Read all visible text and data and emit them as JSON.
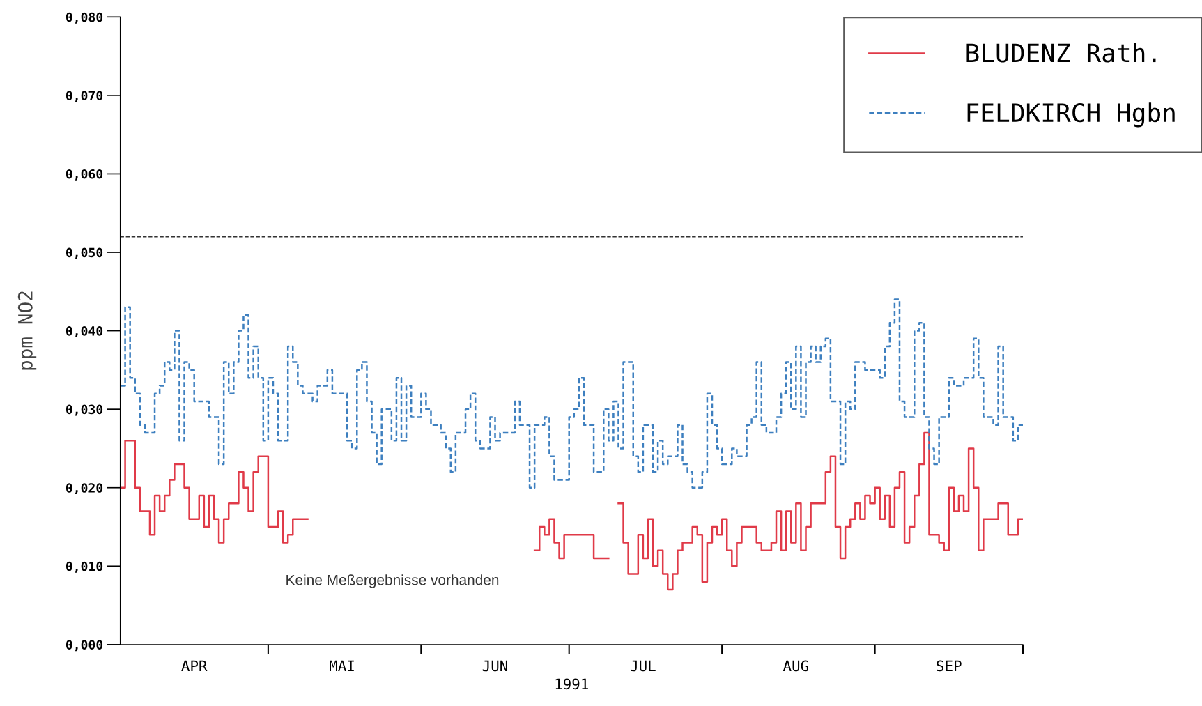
{
  "chart_data": {
    "type": "step",
    "xlabel": "1991",
    "ylabel": "ppm NO2",
    "xlim": [
      "1991-04-01",
      "1991-10-01"
    ],
    "ylim": [
      0,
      0.08
    ],
    "yticks": [
      {
        "value": 0,
        "label": "0,000"
      },
      {
        "value": 0.01,
        "label": "0,010"
      },
      {
        "value": 0.02,
        "label": "0,020"
      },
      {
        "value": 0.03,
        "label": "0,030"
      },
      {
        "value": 0.04,
        "label": "0,040"
      },
      {
        "value": 0.05,
        "label": "0,050"
      },
      {
        "value": 0.06,
        "label": "0,060"
      },
      {
        "value": 0.07,
        "label": "0,070"
      },
      {
        "value": 0.08,
        "label": "0,080"
      }
    ],
    "xticks": [
      {
        "value": "1991-04-16",
        "label": "APR"
      },
      {
        "value": "1991-05-01",
        "label": null
      },
      {
        "value": "1991-05-16",
        "label": "MAI"
      },
      {
        "value": "1991-06-01",
        "label": null
      },
      {
        "value": "1991-06-16",
        "label": "JUN"
      },
      {
        "value": "1991-07-01",
        "label": null
      },
      {
        "value": "1991-07-16",
        "label": "JUL"
      },
      {
        "value": "1991-08-01",
        "label": null
      },
      {
        "value": "1991-08-16",
        "label": "AUG"
      },
      {
        "value": "1991-09-01",
        "label": null
      },
      {
        "value": "1991-09-16",
        "label": "SEP"
      },
      {
        "value": "1991-10-01",
        "label": null
      }
    ],
    "grid": false,
    "legend": "top right",
    "ref_lines": [
      {
        "axis": "y",
        "value": 0.052,
        "color": "#333333",
        "line_style": "dashed"
      }
    ],
    "annotations": [
      "Keine Meßergebnisse vorhanden"
    ],
    "series": [
      {
        "name": "BLUDENZ Rath.",
        "color": "#e03a48",
        "line_style": "solid",
        "x": [
          "1991-04-01",
          "1991-04-02",
          "1991-04-04",
          "1991-04-05",
          "1991-04-07",
          "1991-04-08",
          "1991-04-09",
          "1991-04-10",
          "1991-04-11",
          "1991-04-12",
          "1991-04-14",
          "1991-04-15",
          "1991-04-17",
          "1991-04-18",
          "1991-04-19",
          "1991-04-20",
          "1991-04-21",
          "1991-04-22",
          "1991-04-23",
          "1991-04-25",
          "1991-04-26",
          "1991-04-27",
          "1991-04-28",
          "1991-04-29",
          "1991-05-01",
          "1991-05-03",
          "1991-05-04",
          "1991-05-05",
          "1991-05-06",
          "1991-05-08",
          "1991-05-09",
          "1991-06-24",
          "1991-06-25",
          "1991-06-26",
          "1991-06-27",
          "1991-06-28",
          "1991-06-29",
          "1991-06-30",
          "1991-07-06",
          "1991-07-08",
          "1991-07-09",
          "1991-07-11",
          "1991-07-12",
          "1991-07-13",
          "1991-07-15",
          "1991-07-16",
          "1991-07-17",
          "1991-07-18",
          "1991-07-19",
          "1991-07-20",
          "1991-07-21",
          "1991-07-22",
          "1991-07-23",
          "1991-07-24",
          "1991-07-26",
          "1991-07-27",
          "1991-07-28",
          "1991-07-29",
          "1991-07-30",
          "1991-07-31",
          "1991-08-01",
          "1991-08-02",
          "1991-08-03",
          "1991-08-04",
          "1991-08-05",
          "1991-08-08",
          "1991-08-09",
          "1991-08-11",
          "1991-08-12",
          "1991-08-13",
          "1991-08-14",
          "1991-08-15",
          "1991-08-16",
          "1991-08-17",
          "1991-08-18",
          "1991-08-19",
          "1991-08-22",
          "1991-08-23",
          "1991-08-24",
          "1991-08-25",
          "1991-08-26",
          "1991-08-27",
          "1991-08-28",
          "1991-08-29",
          "1991-08-30",
          "1991-08-31",
          "1991-09-01",
          "1991-09-02",
          "1991-09-03",
          "1991-09-04",
          "1991-09-05",
          "1991-09-06",
          "1991-09-07",
          "1991-09-08",
          "1991-09-09",
          "1991-09-10",
          "1991-09-11",
          "1991-09-12",
          "1991-09-14",
          "1991-09-15",
          "1991-09-16",
          "1991-09-17",
          "1991-09-18",
          "1991-09-19",
          "1991-09-20",
          "1991-09-21",
          "1991-09-22",
          "1991-09-23",
          "1991-09-24",
          "1991-09-26",
          "1991-09-28",
          "1991-09-30",
          "1991-10-01"
        ],
        "values": [
          0.02,
          0.026,
          0.02,
          0.017,
          0.014,
          0.019,
          0.017,
          0.019,
          0.021,
          0.023,
          0.02,
          0.016,
          0.019,
          0.015,
          0.019,
          0.016,
          0.013,
          0.016,
          0.018,
          0.022,
          0.02,
          0.017,
          0.022,
          0.024,
          0.015,
          0.017,
          0.013,
          0.014,
          0.016,
          0.016,
          null,
          0.012,
          0.015,
          0.014,
          0.016,
          0.013,
          0.011,
          0.014,
          0.011,
          0.011,
          null,
          0.018,
          0.013,
          0.009,
          0.014,
          0.011,
          0.016,
          0.01,
          0.012,
          0.009,
          0.007,
          0.009,
          0.012,
          0.013,
          0.015,
          0.014,
          0.008,
          0.013,
          0.015,
          0.014,
          0.016,
          0.012,
          0.01,
          0.013,
          0.015,
          0.013,
          0.012,
          0.013,
          0.017,
          0.012,
          0.017,
          0.013,
          0.018,
          0.012,
          0.015,
          0.018,
          0.022,
          0.024,
          0.015,
          0.011,
          0.015,
          0.016,
          0.018,
          0.016,
          0.019,
          0.018,
          0.02,
          0.016,
          0.019,
          0.015,
          0.02,
          0.022,
          0.013,
          0.015,
          0.019,
          0.023,
          0.027,
          0.014,
          0.013,
          0.012,
          0.02,
          0.017,
          0.019,
          0.017,
          0.025,
          0.02,
          0.012,
          0.016,
          0.016,
          0.018,
          0.014,
          0.016,
          0.016
        ]
      },
      {
        "name": "FELDKIRCH Hgbn",
        "color": "#3d7fbf",
        "line_style": "dashed",
        "x": [
          "1991-04-01",
          "1991-04-02",
          "1991-04-03",
          "1991-04-04",
          "1991-04-05",
          "1991-04-06",
          "1991-04-08",
          "1991-04-09",
          "1991-04-10",
          "1991-04-11",
          "1991-04-12",
          "1991-04-13",
          "1991-04-14",
          "1991-04-15",
          "1991-04-16",
          "1991-04-17",
          "1991-04-19",
          "1991-04-21",
          "1991-04-22",
          "1991-04-23",
          "1991-04-24",
          "1991-04-25",
          "1991-04-26",
          "1991-04-27",
          "1991-04-28",
          "1991-04-29",
          "1991-04-30",
          "1991-05-01",
          "1991-05-02",
          "1991-05-03",
          "1991-05-05",
          "1991-05-06",
          "1991-05-07",
          "1991-05-08",
          "1991-05-10",
          "1991-05-11",
          "1991-05-13",
          "1991-05-14",
          "1991-05-16",
          "1991-05-17",
          "1991-05-18",
          "1991-05-19",
          "1991-05-20",
          "1991-05-21",
          "1991-05-22",
          "1991-05-23",
          "1991-05-24",
          "1991-05-26",
          "1991-05-27",
          "1991-05-28",
          "1991-05-29",
          "1991-05-30",
          "1991-06-01",
          "1991-06-02",
          "1991-06-03",
          "1991-06-05",
          "1991-06-06",
          "1991-06-07",
          "1991-06-08",
          "1991-06-10",
          "1991-06-11",
          "1991-06-12",
          "1991-06-13",
          "1991-06-15",
          "1991-06-16",
          "1991-06-17",
          "1991-06-20",
          "1991-06-21",
          "1991-06-23",
          "1991-06-24",
          "1991-06-26",
          "1991-06-27",
          "1991-06-28",
          "1991-06-30",
          "1991-07-01",
          "1991-07-02",
          "1991-07-03",
          "1991-07-04",
          "1991-07-05",
          "1991-07-06",
          "1991-07-08",
          "1991-07-09",
          "1991-07-10",
          "1991-07-11",
          "1991-07-12",
          "1991-07-14",
          "1991-07-15",
          "1991-07-16",
          "1991-07-18",
          "1991-07-19",
          "1991-07-20",
          "1991-07-21",
          "1991-07-23",
          "1991-07-24",
          "1991-07-25",
          "1991-07-26",
          "1991-07-28",
          "1991-07-29",
          "1991-07-30",
          "1991-07-31",
          "1991-08-01",
          "1991-08-03",
          "1991-08-04",
          "1991-08-06",
          "1991-08-07",
          "1991-08-08",
          "1991-08-09",
          "1991-08-10",
          "1991-08-12",
          "1991-08-13",
          "1991-08-14",
          "1991-08-15",
          "1991-08-16",
          "1991-08-17",
          "1991-08-18",
          "1991-08-19",
          "1991-08-20",
          "1991-08-21",
          "1991-08-22",
          "1991-08-23",
          "1991-08-25",
          "1991-08-26",
          "1991-08-27",
          "1991-08-28",
          "1991-08-30",
          "1991-09-01",
          "1991-09-02",
          "1991-09-03",
          "1991-09-04",
          "1991-09-05",
          "1991-09-06",
          "1991-09-07",
          "1991-09-09",
          "1991-09-10",
          "1991-09-11",
          "1991-09-12",
          "1991-09-13",
          "1991-09-14",
          "1991-09-16",
          "1991-09-17",
          "1991-09-19",
          "1991-09-21",
          "1991-09-22",
          "1991-09-23",
          "1991-09-25",
          "1991-09-26",
          "1991-09-27",
          "1991-09-29",
          "1991-09-30",
          "1991-10-01"
        ],
        "values": [
          0.033,
          0.043,
          0.034,
          0.032,
          0.028,
          0.027,
          0.032,
          0.033,
          0.036,
          0.035,
          0.04,
          0.026,
          0.036,
          0.035,
          0.031,
          0.031,
          0.029,
          0.023,
          0.036,
          0.032,
          0.036,
          0.04,
          0.042,
          0.034,
          0.038,
          0.034,
          0.026,
          0.034,
          0.032,
          0.026,
          0.038,
          0.036,
          0.033,
          0.032,
          0.031,
          0.033,
          0.035,
          0.032,
          0.032,
          0.026,
          0.025,
          0.035,
          0.036,
          0.031,
          0.027,
          0.023,
          0.03,
          0.026,
          0.034,
          0.026,
          0.033,
          0.029,
          0.032,
          0.03,
          0.028,
          0.027,
          0.025,
          0.022,
          0.027,
          0.03,
          0.032,
          0.026,
          0.025,
          0.029,
          0.026,
          0.027,
          0.031,
          0.028,
          0.02,
          0.028,
          0.029,
          0.024,
          0.021,
          0.021,
          0.029,
          0.03,
          0.034,
          0.028,
          0.028,
          0.022,
          0.03,
          0.026,
          0.031,
          0.025,
          0.036,
          0.024,
          0.022,
          0.028,
          0.022,
          0.026,
          0.023,
          0.024,
          0.028,
          0.023,
          0.022,
          0.02,
          0.022,
          0.032,
          0.028,
          0.025,
          0.023,
          0.025,
          0.024,
          0.028,
          0.029,
          0.036,
          0.028,
          0.027,
          0.029,
          0.032,
          0.036,
          0.03,
          0.038,
          0.029,
          0.036,
          0.038,
          0.036,
          0.038,
          0.039,
          0.031,
          0.023,
          0.031,
          0.03,
          0.036,
          0.035,
          0.035,
          0.034,
          0.038,
          0.041,
          0.044,
          0.031,
          0.029,
          0.04,
          0.041,
          0.029,
          0.025,
          0.023,
          0.029,
          0.034,
          0.033,
          0.034,
          0.039,
          0.034,
          0.029,
          0.028,
          0.038,
          0.029,
          0.026,
          0.028,
          0.028
        ]
      }
    ]
  }
}
